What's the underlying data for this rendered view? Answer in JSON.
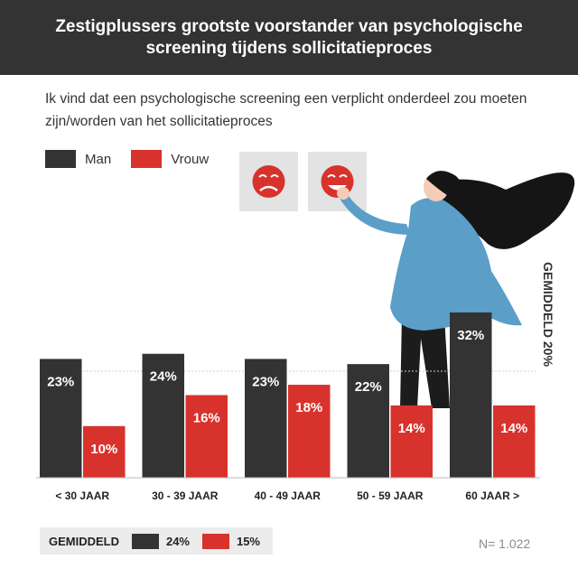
{
  "header": {
    "title": "Zestigplussers grootste voorstander van psychologische screening tijdens sollicitatieproces"
  },
  "subtitle": "Ik vind dat een psychologische screening een verplicht onderdeel zou moeten zijn/worden van het sollicitatieproces",
  "colors": {
    "man": "#333333",
    "vrouw": "#d8322d",
    "header_bg": "#333333",
    "shirt": "#5b9ec8",
    "hair": "#151515"
  },
  "icons": [
    "sad-face-icon",
    "happy-face-icon"
  ],
  "average_line_label": "GEMIDDELD 20%",
  "footer": {
    "label": "GEMIDDELD",
    "man_avg": "24%",
    "vrouw_avg": "15%",
    "n": "N= 1.022"
  },
  "chart_data": {
    "type": "bar",
    "categories": [
      "< 30 JAAR",
      "30 - 39 JAAR",
      "40 - 49 JAAR",
      "50 - 59 JAAR",
      "60 JAAR >"
    ],
    "series": [
      {
        "name": "Man",
        "values": [
          23,
          24,
          23,
          22,
          32
        ]
      },
      {
        "name": "Vrouw",
        "values": [
          10,
          16,
          18,
          14,
          14
        ]
      }
    ],
    "data_labels": [
      [
        "23%",
        "24%",
        "23%",
        "22%",
        "32%"
      ],
      [
        "10%",
        "16%",
        "18%",
        "14%",
        "14%"
      ]
    ],
    "average": 20,
    "legend_position": "top-left",
    "grid": false
  }
}
